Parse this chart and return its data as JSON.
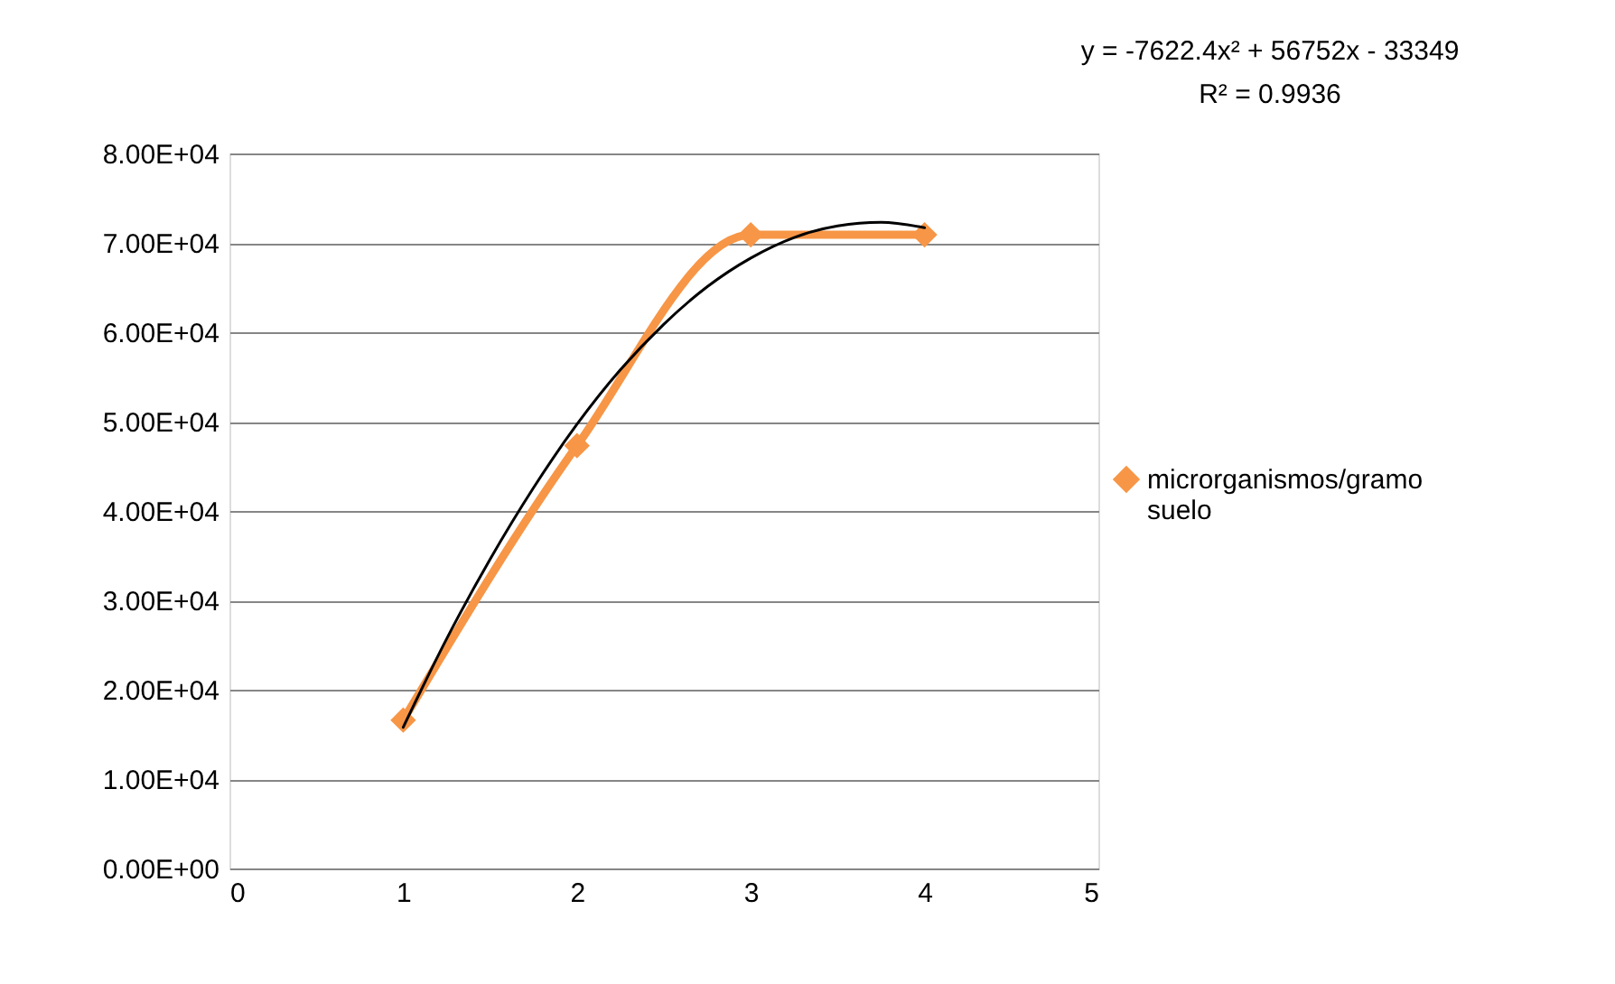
{
  "chart_data": {
    "type": "line",
    "x": [
      1,
      2,
      3,
      4
    ],
    "series": [
      {
        "name": "microrganismos/gramo suelo",
        "color": "#f79646",
        "values": [
          16600,
          47300,
          70900,
          70900
        ],
        "marker": "diamond"
      },
      {
        "type": "line",
        "color": "#000000",
        "x": [
          1,
          1.25,
          1.5,
          1.75,
          2,
          2.25,
          2.5,
          2.75,
          3,
          3.25,
          3.5,
          3.75,
          4
        ],
        "values": [
          15800,
          25700,
          34600,
          42600,
          49700,
          55800,
          60900,
          65100,
          68300,
          70600,
          71900,
          72300,
          71700
        ],
        "marker": "none"
      }
    ],
    "xlim": [
      0,
      5
    ],
    "xticks": [
      0,
      1,
      2,
      3,
      4,
      5
    ],
    "ylim": [
      0,
      80000
    ],
    "yticks": [
      {
        "value": 0,
        "label": "0.00E+00"
      },
      {
        "value": 10000,
        "label": "1.00E+04"
      },
      {
        "value": 20000,
        "label": "2.00E+04"
      },
      {
        "value": 30000,
        "label": "3.00E+04"
      },
      {
        "value": 40000,
        "label": "4.00E+04"
      },
      {
        "value": 50000,
        "label": "5.00E+04"
      },
      {
        "value": 60000,
        "label": "6.00E+04"
      },
      {
        "value": 70000,
        "label": "7.00E+04"
      },
      {
        "value": 80000,
        "label": "8.00E+04"
      }
    ],
    "grid": "y",
    "legend": "right",
    "annotations": [
      "y = -7622.4x² + 56752x - 33349",
      "R² = 0.9936"
    ]
  }
}
